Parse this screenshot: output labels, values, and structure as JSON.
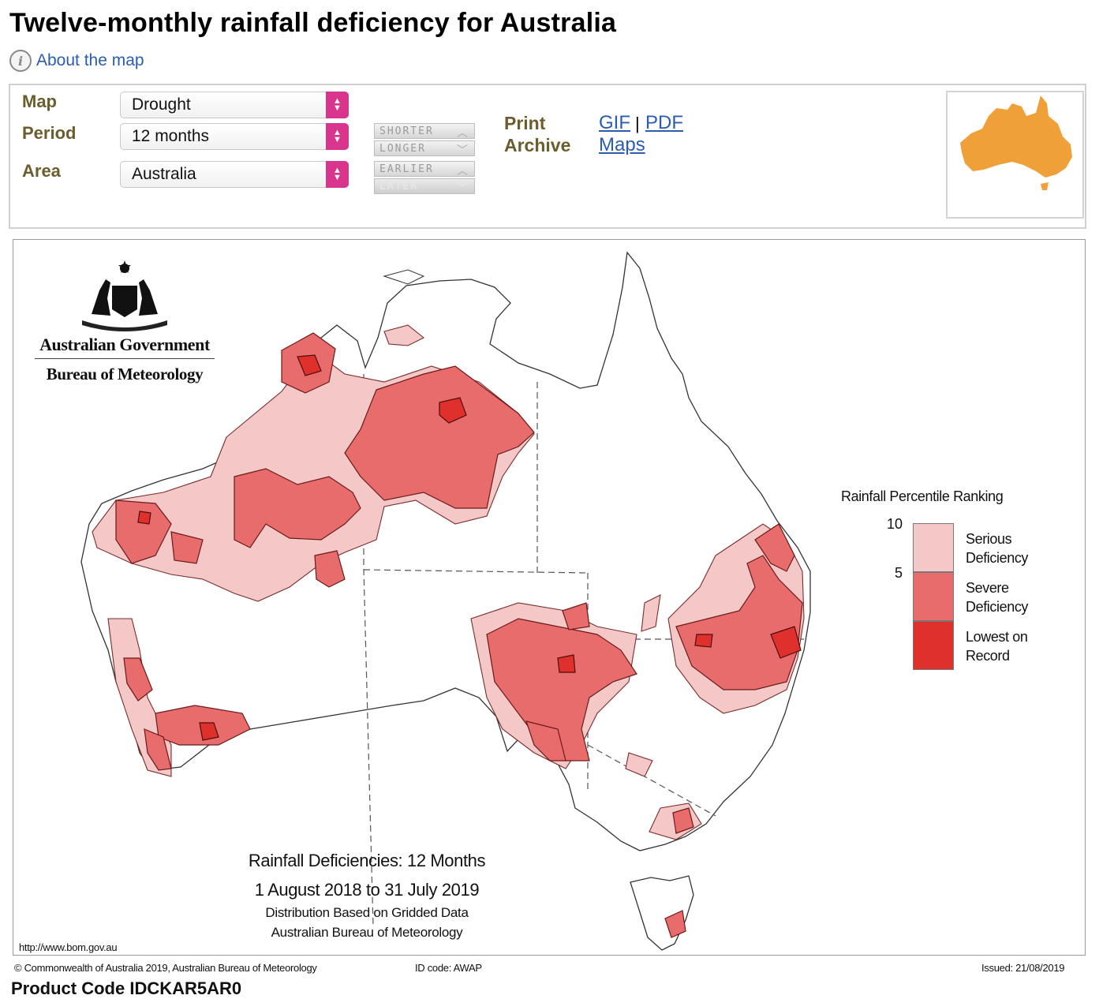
{
  "page": {
    "title": "Twelve-monthly rainfall deficiency for Australia",
    "about_link": "About the map",
    "product_code_partial": "Product Code IDCKAR5AR0"
  },
  "controls": {
    "map_label": "Map",
    "map_value": "Drought",
    "period_label": "Period",
    "period_value": "12 months",
    "area_label": "Area",
    "area_value": "Australia",
    "shorter": "SHORTER",
    "longer": "LONGER",
    "earlier": "EARLIER",
    "later": "LATER",
    "print_label": "Print",
    "archive_label": "Archive",
    "gif": "GIF",
    "sep": "|",
    "pdf": "PDF",
    "maps": "Maps"
  },
  "map": {
    "gov_line1": "Australian Government",
    "gov_line2": "Bureau of Meteorology",
    "caption_title": "Rainfall Deficiencies: 12 Months",
    "caption_dates": "1 August 2018 to 31 July 2019",
    "caption_line3": "Distribution Based on Gridded Data",
    "caption_line4": "Australian Bureau of Meteorology",
    "url": "http://www.bom.gov.au",
    "copyright": "© Commonwealth of Australia 2019, Australian Bureau of Meteorology",
    "id_code": "ID code: AWAP",
    "issued": "Issued: 21/08/2019"
  },
  "legend": {
    "title": "Rainfall Percentile Ranking",
    "tick_10": "10",
    "tick_5": "5",
    "serious_1": "Serious",
    "serious_2": "Deficiency",
    "severe_1": "Severe",
    "severe_2": "Deficiency",
    "lowest_1": "Lowest on",
    "lowest_2": "Record",
    "colors": {
      "serious": "#f5c8c8",
      "severe": "#e86c6c",
      "lowest": "#e0302b"
    }
  },
  "thumbnail": {
    "fill": "#f0a038"
  }
}
